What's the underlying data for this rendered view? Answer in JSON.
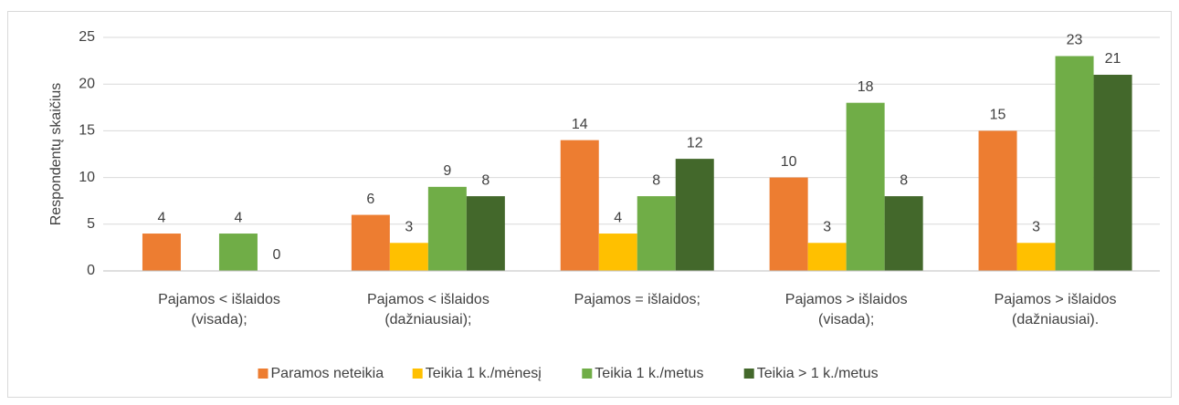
{
  "chart_data": {
    "type": "bar",
    "y_axis_label": "Respondentų skaičius",
    "categories": [
      "Pajamos < išlaidos\n(visada);",
      "Pajamos < išlaidos\n(dažniausiai);",
      "Pajamos = išlaidos;",
      "Pajamos > išlaidos\n(visada);",
      "Pajamos > išlaidos\n(dažniausiai)."
    ],
    "series": [
      {
        "name": "Paramos neteikia",
        "color": "#ed7d31",
        "values": [
          4,
          6,
          14,
          10,
          15
        ]
      },
      {
        "name": "Teikia 1 k./mėnesį",
        "color": "#ffc000",
        "values": [
          null,
          3,
          4,
          3,
          3
        ]
      },
      {
        "name": "Teikia 1 k./metus",
        "color": "#70ad47",
        "values": [
          4,
          9,
          8,
          18,
          23
        ]
      },
      {
        "name": "Teikia > 1 k./metus",
        "color": "#43682b",
        "values": [
          0,
          8,
          12,
          8,
          21
        ]
      }
    ],
    "ylim": [
      0,
      25
    ],
    "yticks": [
      0,
      5,
      10,
      15,
      20,
      25
    ],
    "grid": true,
    "legend": "bottom"
  }
}
